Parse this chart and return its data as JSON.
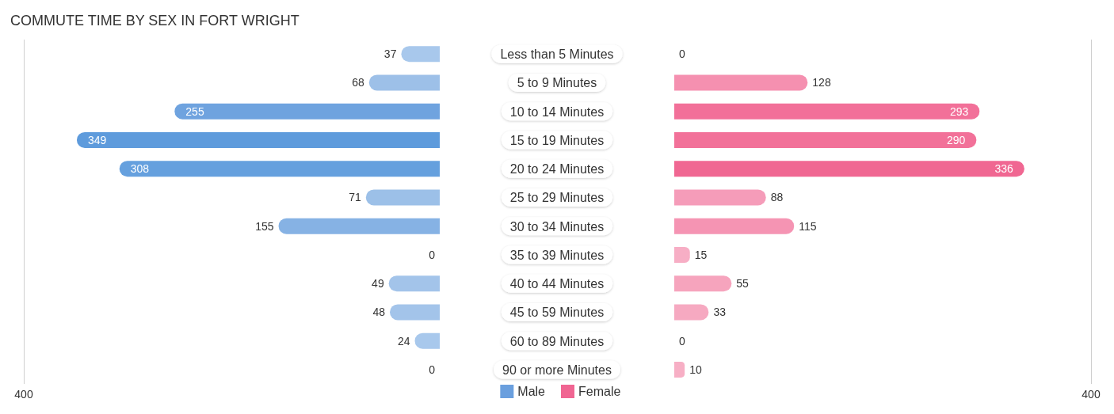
{
  "chart_data": [
    {
      "type": "bar",
      "orientation": "horizontal",
      "title": "COMMUTE TIME BY SEX IN FORT WRIGHT",
      "categories": [
        "Less than 5 Minutes",
        "5 to 9 Minutes",
        "10 to 14 Minutes",
        "15 to 19 Minutes",
        "20 to 24 Minutes",
        "25 to 29 Minutes",
        "30 to 34 Minutes",
        "35 to 39 Minutes",
        "40 to 44 Minutes",
        "45 to 59 Minutes",
        "60 to 89 Minutes",
        "90 or more Minutes"
      ],
      "series": [
        {
          "name": "Male",
          "color": "#6a9fde",
          "values": [
            37,
            68,
            255,
            349,
            308,
            71,
            155,
            0,
            49,
            48,
            24,
            0
          ],
          "colors": [
            "#a8c8ec",
            "#9dc0e8",
            "#6fa3df",
            "#5e9bdc",
            "#65a0de",
            "#9cc0e8",
            "#86b2e4",
            "#abcaed",
            "#a3c4ea",
            "#a3c4ea",
            "#a8c8ec",
            "#abcaed"
          ]
        }
      ],
      "xlim": [
        400,
        0
      ],
      "xticks": [
        400
      ],
      "data_labels": true,
      "legend": "bottom right"
    },
    {
      "type": "bar",
      "orientation": "horizontal",
      "categories": [
        null,
        null,
        null,
        null,
        null,
        null,
        null,
        null,
        null,
        null,
        null,
        null
      ],
      "series": [
        {
          "name": "Female",
          "color": "#f06592",
          "values": [
            0,
            128,
            293,
            290,
            336,
            88,
            115,
            15,
            55,
            33,
            0,
            10
          ],
          "colors": [
            "#f8b2c7",
            "#f590b0",
            "#f27099",
            "#f27199",
            "#f06792",
            "#f59cb9",
            "#f594b3",
            "#f7aec5",
            "#f6a4bd",
            "#f6a9c1",
            "#f8b2c7",
            "#f7afc5"
          ]
        }
      ],
      "xlim": [
        0,
        400
      ],
      "xticks": [
        400
      ],
      "data_labels": true,
      "legend": "bottom left"
    }
  ]
}
